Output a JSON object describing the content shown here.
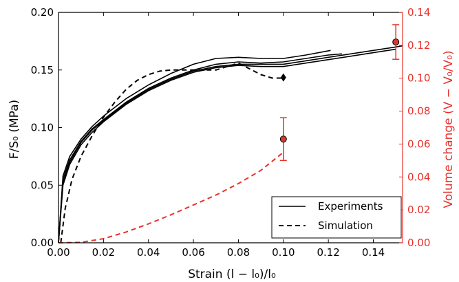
{
  "chart_data": {
    "type": "line",
    "title": "",
    "xlabel": "Strain (l − l₀)/l₀",
    "ylabel_left": "F/S₀ (MPa)",
    "ylabel_right": "Volume change (V − V₀/V₀)",
    "xlim": [
      0.0,
      0.153
    ],
    "ylim_left": [
      0.0,
      0.2
    ],
    "ylim_right": [
      0.0,
      0.14
    ],
    "x_ticks": [
      0.0,
      0.02,
      0.04,
      0.06,
      0.08,
      0.1,
      0.12,
      0.14
    ],
    "x_tick_labels": [
      "0.00",
      "0.02",
      "0.04",
      "0.06",
      "0.08",
      "0.10",
      "0.12",
      "0.14"
    ],
    "y_left_ticks": [
      0.0,
      0.05,
      0.1,
      0.15,
      0.2
    ],
    "y_left_tick_labels": [
      "0.00",
      "0.05",
      "0.10",
      "0.15",
      "0.20"
    ],
    "y_right_ticks": [
      0.0,
      0.02,
      0.04,
      0.06,
      0.08,
      0.1,
      0.12,
      0.14
    ],
    "y_right_tick_labels": [
      "0.00",
      "0.02",
      "0.04",
      "0.06",
      "0.08",
      "0.10",
      "0.12",
      "0.14"
    ],
    "grid": false,
    "legend_position": "bottom-right",
    "legend": [
      {
        "label": "Experiments",
        "style": "solid"
      },
      {
        "label": "Simulation",
        "style": "dashed"
      }
    ],
    "colors": {
      "black": "#000000",
      "right_axis": "#e8312b",
      "marker_fill": "#d8392b"
    },
    "series": [
      {
        "axis": "left",
        "style": "solid",
        "color": "#000000",
        "x": [
          0,
          0.002,
          0.005,
          0.01,
          0.015,
          0.02,
          0.03,
          0.04,
          0.05,
          0.06,
          0.07,
          0.08,
          0.09,
          0.1,
          0.11,
          0.12,
          0.126
        ],
        "y": [
          0,
          0.055,
          0.072,
          0.088,
          0.099,
          0.107,
          0.122,
          0.134,
          0.143,
          0.15,
          0.155,
          0.157,
          0.156,
          0.157,
          0.16,
          0.163,
          0.164
        ]
      },
      {
        "axis": "left",
        "style": "solid",
        "color": "#000000",
        "x": [
          0,
          0.002,
          0.005,
          0.01,
          0.015,
          0.02,
          0.03,
          0.04,
          0.05,
          0.06,
          0.07,
          0.08,
          0.09,
          0.1,
          0.11,
          0.12,
          0.13,
          0.14,
          0.15
        ],
        "y": [
          0,
          0.05,
          0.068,
          0.085,
          0.096,
          0.105,
          0.12,
          0.132,
          0.141,
          0.148,
          0.152,
          0.154,
          0.153,
          0.153,
          0.156,
          0.159,
          0.162,
          0.165,
          0.168
        ]
      },
      {
        "axis": "left",
        "style": "solid",
        "color": "#000000",
        "x": [
          0,
          0.002,
          0.005,
          0.01,
          0.015,
          0.02,
          0.03,
          0.04,
          0.05,
          0.06,
          0.07,
          0.08,
          0.09,
          0.1,
          0.11,
          0.121
        ],
        "y": [
          0,
          0.058,
          0.075,
          0.09,
          0.101,
          0.11,
          0.125,
          0.137,
          0.147,
          0.155,
          0.16,
          0.161,
          0.16,
          0.16,
          0.163,
          0.167
        ]
      },
      {
        "axis": "left",
        "style": "solid",
        "color": "#000000",
        "x": [
          0,
          0.002,
          0.005,
          0.01,
          0.015,
          0.02,
          0.03,
          0.04,
          0.05,
          0.06,
          0.07,
          0.08,
          0.09,
          0.1,
          0.11,
          0.12,
          0.13,
          0.14,
          0.15,
          0.153
        ],
        "y": [
          0,
          0.052,
          0.07,
          0.087,
          0.098,
          0.106,
          0.121,
          0.133,
          0.142,
          0.149,
          0.153,
          0.155,
          0.155,
          0.155,
          0.158,
          0.161,
          0.164,
          0.167,
          0.17,
          0.171
        ]
      },
      {
        "axis": "left",
        "style": "dashed",
        "color": "#000000",
        "x": [
          0.001,
          0.003,
          0.006,
          0.01,
          0.015,
          0.02,
          0.025,
          0.03,
          0.035,
          0.04,
          0.045,
          0.05,
          0.06,
          0.07,
          0.08,
          0.085,
          0.09,
          0.095,
          0.1
        ],
        "y": [
          0,
          0.03,
          0.055,
          0.075,
          0.093,
          0.109,
          0.122,
          0.133,
          0.141,
          0.146,
          0.149,
          0.15,
          0.15,
          0.15,
          0.156,
          0.151,
          0.146,
          0.143,
          0.143
        ]
      },
      {
        "axis": "right",
        "style": "dashed",
        "color": "#e8312b",
        "x": [
          0,
          0.01,
          0.02,
          0.03,
          0.04,
          0.05,
          0.06,
          0.07,
          0.08,
          0.09,
          0.1
        ],
        "y": [
          0,
          0.0003,
          0.0025,
          0.0065,
          0.0115,
          0.017,
          0.023,
          0.029,
          0.036,
          0.044,
          0.055
        ]
      }
    ],
    "markers": [
      {
        "type": "diamond",
        "axis": "left",
        "x": 0.1,
        "y": 0.1435,
        "color": "#000000"
      },
      {
        "type": "circle_errorbar",
        "axis": "right",
        "x": 0.1,
        "y": 0.063,
        "err": 0.013,
        "color": "#d8392b"
      },
      {
        "type": "circle_errorbar",
        "axis": "right",
        "x": 0.15,
        "y": 0.122,
        "err": 0.0105,
        "color": "#d8392b"
      }
    ]
  }
}
